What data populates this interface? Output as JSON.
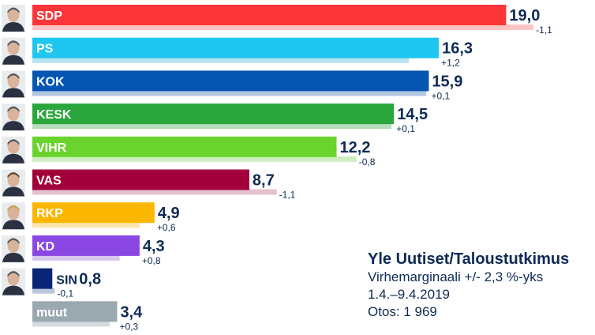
{
  "chart_data": {
    "type": "bar",
    "orientation": "horizontal",
    "categories": [
      "SDP",
      "PS",
      "KOK",
      "KESK",
      "VIHR",
      "VAS",
      "RKP",
      "KD",
      "SIN",
      "muut"
    ],
    "series": [
      {
        "name": "current",
        "values": [
          19.0,
          16.3,
          15.9,
          14.5,
          12.2,
          8.7,
          4.9,
          4.3,
          0.8,
          3.4
        ]
      },
      {
        "name": "previous",
        "values": [
          20.1,
          15.1,
          15.8,
          14.4,
          13.0,
          9.8,
          4.3,
          3.5,
          0.9,
          3.1
        ]
      }
    ],
    "value_labels": [
      "19,0",
      "16,3",
      "15,9",
      "14,5",
      "12,2",
      "8,7",
      "4,9",
      "4,3",
      "0,8",
      "3,4"
    ],
    "change_labels": [
      "-1,1",
      "+1,2",
      "+0,1",
      "+0,1",
      "-0,8",
      "-1,1",
      "+0,6",
      "+0,8",
      "-0,1",
      "+0,3"
    ],
    "colors": [
      "#fb3538",
      "#1ec6f0",
      "#0556b3",
      "#2aa63c",
      "#6ad32e",
      "#a1003a",
      "#fbb600",
      "#8a47e3",
      "#0a2575",
      "#9aa8b0"
    ],
    "prev_colors": [
      "#fcc4c4",
      "#b6e4f3",
      "#b2c7e4",
      "#b7dcbb",
      "#cdedc0",
      "#e4c1cc",
      "#fbe5ad",
      "#d7c6ef",
      "#bcc6dc",
      "#d4dadd"
    ],
    "xlim": [
      0,
      20
    ]
  },
  "source": {
    "title": "Yle Uutiset/Taloustutkimus",
    "margin": "Virhemarginaali +/- 2,3 %-yks",
    "period": "1.4.–9.4.2019",
    "sample": "Otos: 1 969"
  }
}
